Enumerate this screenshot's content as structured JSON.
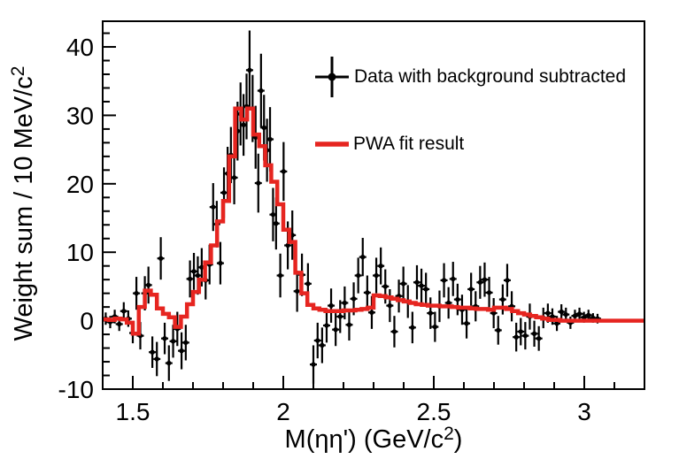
{
  "figure": {
    "background": "#ffffff",
    "colors": {
      "data": "#000000",
      "fit": "#e62520",
      "frame": "#000000"
    }
  },
  "chart_data": {
    "type": "line",
    "title": "",
    "xlabel": "M(ηη') (GeV/c²)",
    "ylabel": "Weight sum / 10 MeV/c²",
    "xlabel_parts": {
      "pre": "M(ηη') (GeV/c",
      "sup": "2",
      "post": ")"
    },
    "ylabel_parts": {
      "pre": "Weight sum / 10 MeV/c",
      "sup": "2",
      "post": ""
    },
    "xlim": [
      1.4,
      3.2
    ],
    "ylim": [
      -10,
      43.75
    ],
    "grid": false,
    "legend_position": "top-right-inside",
    "x_major_ticks": [
      {
        "v": 1.5,
        "label": "1.5"
      },
      {
        "v": 2,
        "label": "2"
      },
      {
        "v": 2.5,
        "label": "2.5"
      },
      {
        "v": 3,
        "label": "3"
      }
    ],
    "x_minor_step": 0.1,
    "y_major_ticks": [
      {
        "v": -10,
        "label": "-10"
      },
      {
        "v": 0,
        "label": "0"
      },
      {
        "v": 10,
        "label": "10"
      },
      {
        "v": 20,
        "label": "20"
      },
      {
        "v": 30,
        "label": "30"
      },
      {
        "v": 40,
        "label": "40"
      }
    ],
    "y_minor_step": 2,
    "series": [
      {
        "name": "Data with background subtracted",
        "style": "errorbar-points",
        "color": "#000000",
        "points": [
          [
            1.41,
            0.3,
            0.9
          ],
          [
            1.425,
            -0.2,
            0.9
          ],
          [
            1.44,
            0.6,
            1.0
          ],
          [
            1.455,
            -0.5,
            1.0
          ],
          [
            1.47,
            1.4,
            1.3
          ],
          [
            1.485,
            0.3,
            1.2
          ],
          [
            1.5,
            -1.8,
            1.5
          ],
          [
            1.512,
            4.0,
            2.4
          ],
          [
            1.525,
            -2.2,
            2.0
          ],
          [
            1.54,
            4.0,
            2.5
          ],
          [
            1.552,
            5.2,
            2.7
          ],
          [
            1.565,
            -4.6,
            2.3
          ],
          [
            1.58,
            -5.6,
            2.5
          ],
          [
            1.593,
            9.1,
            3.1
          ],
          [
            1.606,
            -2.6,
            2.3
          ],
          [
            1.62,
            -6.2,
            2.6
          ],
          [
            1.634,
            -3.0,
            2.4
          ],
          [
            1.648,
            -1.2,
            2.5
          ],
          [
            1.662,
            -4.4,
            2.7
          ],
          [
            1.676,
            -3.2,
            2.6
          ],
          [
            1.69,
            6.1,
            2.7
          ],
          [
            1.703,
            7.2,
            2.7
          ],
          [
            1.716,
            6.6,
            2.8
          ],
          [
            1.729,
            7.8,
            2.8
          ],
          [
            1.742,
            5.9,
            2.8
          ],
          [
            1.755,
            8.2,
            2.9
          ],
          [
            1.767,
            16.6,
            3.5
          ],
          [
            1.779,
            14.1,
            3.4
          ],
          [
            1.791,
            8.4,
            3.1
          ],
          [
            1.803,
            18.7,
            3.7
          ],
          [
            1.815,
            21.5,
            3.9
          ],
          [
            1.826,
            24.2,
            4.1
          ],
          [
            1.837,
            20.9,
            3.9
          ],
          [
            1.848,
            27.7,
            4.3
          ],
          [
            1.858,
            30.2,
            4.6
          ],
          [
            1.868,
            28.6,
            4.5
          ],
          [
            1.878,
            31.3,
            4.8
          ],
          [
            1.888,
            36.6,
            5.8
          ],
          [
            1.898,
            31.0,
            4.9
          ],
          [
            1.908,
            26.8,
            4.6
          ],
          [
            1.917,
            20.1,
            4.3
          ],
          [
            1.926,
            33.6,
            5.4
          ],
          [
            1.936,
            28.2,
            4.8
          ],
          [
            1.946,
            24.9,
            4.6
          ],
          [
            1.956,
            26.5,
            4.7
          ],
          [
            1.966,
            15.5,
            3.9
          ],
          [
            1.976,
            14.2,
            3.8
          ],
          [
            1.99,
            6.6,
            3.2
          ],
          [
            2.001,
            21.8,
            4.3
          ],
          [
            2.015,
            11.0,
            3.5
          ],
          [
            2.03,
            12.5,
            3.6
          ],
          [
            2.046,
            4.3,
            3.0
          ],
          [
            2.062,
            6.7,
            3.1
          ],
          [
            2.082,
            5.4,
            3.0
          ],
          [
            2.1,
            -6.4,
            2.8
          ],
          [
            2.114,
            -2.9,
            2.6
          ],
          [
            2.129,
            -3.6,
            2.6
          ],
          [
            2.144,
            -0.7,
            2.5
          ],
          [
            2.159,
            2.2,
            2.5
          ],
          [
            2.174,
            -1.3,
            2.4
          ],
          [
            2.189,
            0.6,
            2.4
          ],
          [
            2.204,
            2.6,
            2.4
          ],
          [
            2.219,
            -0.6,
            2.3
          ],
          [
            2.234,
            3.2,
            2.4
          ],
          [
            2.249,
            6.6,
            2.6
          ],
          [
            2.264,
            9.3,
            2.8
          ],
          [
            2.279,
            4.1,
            2.5
          ],
          [
            2.294,
            1.2,
            2.4
          ],
          [
            2.309,
            6.6,
            2.6
          ],
          [
            2.324,
            8.0,
            2.7
          ],
          [
            2.339,
            5.0,
            2.5
          ],
          [
            2.354,
            2.2,
            2.4
          ],
          [
            2.369,
            -1.6,
            2.3
          ],
          [
            2.384,
            3.6,
            2.4
          ],
          [
            2.399,
            5.4,
            2.5
          ],
          [
            2.414,
            2.8,
            2.4
          ],
          [
            2.429,
            -1.0,
            2.3
          ],
          [
            2.444,
            5.6,
            2.5
          ],
          [
            2.459,
            5.1,
            2.5
          ],
          [
            2.474,
            4.6,
            2.4
          ],
          [
            2.489,
            1.1,
            2.3
          ],
          [
            2.504,
            -0.9,
            2.2
          ],
          [
            2.519,
            2.1,
            2.3
          ],
          [
            2.534,
            5.9,
            2.5
          ],
          [
            2.549,
            2.6,
            2.3
          ],
          [
            2.564,
            6.1,
            2.5
          ],
          [
            2.579,
            3.1,
            2.3
          ],
          [
            2.594,
            1.6,
            2.2
          ],
          [
            2.609,
            -0.4,
            2.2
          ],
          [
            2.624,
            4.6,
            2.4
          ],
          [
            2.639,
            2.1,
            2.2
          ],
          [
            2.654,
            5.6,
            2.4
          ],
          [
            2.669,
            6.0,
            2.5
          ],
          [
            2.684,
            4.1,
            2.3
          ],
          [
            2.699,
            1.1,
            2.2
          ],
          [
            2.714,
            -1.4,
            2.1
          ],
          [
            2.729,
            3.1,
            2.2
          ],
          [
            2.744,
            5.9,
            2.4
          ],
          [
            2.759,
            2.1,
            2.2
          ],
          [
            2.774,
            -2.4,
            2.1
          ],
          [
            2.789,
            -1.6,
            2.0
          ],
          [
            2.804,
            -2.2,
            2.0
          ],
          [
            2.819,
            0.6,
            1.9
          ],
          [
            2.834,
            -1.9,
            1.9
          ],
          [
            2.849,
            -2.6,
            1.8
          ],
          [
            2.864,
            0.4,
            1.5
          ],
          [
            2.879,
            1.1,
            1.4
          ],
          [
            2.894,
            0.6,
            1.2
          ],
          [
            2.909,
            -0.4,
            1.1
          ],
          [
            2.924,
            1.3,
            1.1
          ],
          [
            2.939,
            0.9,
            1.0
          ],
          [
            2.954,
            -0.3,
            0.9
          ],
          [
            2.969,
            0.7,
            0.9
          ],
          [
            2.984,
            1.0,
            0.9
          ],
          [
            2.999,
            0.5,
            0.8
          ],
          [
            3.014,
            0.8,
            0.8
          ],
          [
            3.029,
            0.4,
            0.7
          ],
          [
            3.044,
            0.3,
            0.7
          ]
        ]
      },
      {
        "name": "PWA fit result",
        "style": "step-histogram",
        "color": "#e62520",
        "x_start": 1.4,
        "bin_width": 0.02,
        "values": [
          0.2,
          0.1,
          0.3,
          0.2,
          -0.3,
          -1.9,
          2.0,
          4.4,
          3.8,
          1.8,
          1.0,
          0.5,
          -0.9,
          0.6,
          2.4,
          4.2,
          6.0,
          8.5,
          11.0,
          14.5,
          17.5,
          24.0,
          31.0,
          29.4,
          31.0,
          27.2,
          25.5,
          22.7,
          20.3,
          17.0,
          13.3,
          11.5,
          7.0,
          4.0,
          2.3,
          1.8,
          1.6,
          1.4,
          1.4,
          1.4,
          1.5,
          1.5,
          1.6,
          1.7,
          1.9,
          3.7,
          3.6,
          3.4,
          3.2,
          3.0,
          2.8,
          2.6,
          2.4,
          2.3,
          2.2,
          2.2,
          2.1,
          2.1,
          2.0,
          1.9,
          1.9,
          1.8,
          1.7,
          1.7,
          1.6,
          1.9,
          1.9,
          1.7,
          1.4,
          1.1,
          0.9,
          0.7,
          0.5,
          0.3,
          0.1,
          0.1,
          0.0,
          0.0,
          0.0,
          0.0,
          0.0,
          0.0,
          0.0,
          0.0,
          0.0,
          0.0,
          0.0,
          0.0,
          0.0,
          0.0
        ]
      }
    ]
  }
}
